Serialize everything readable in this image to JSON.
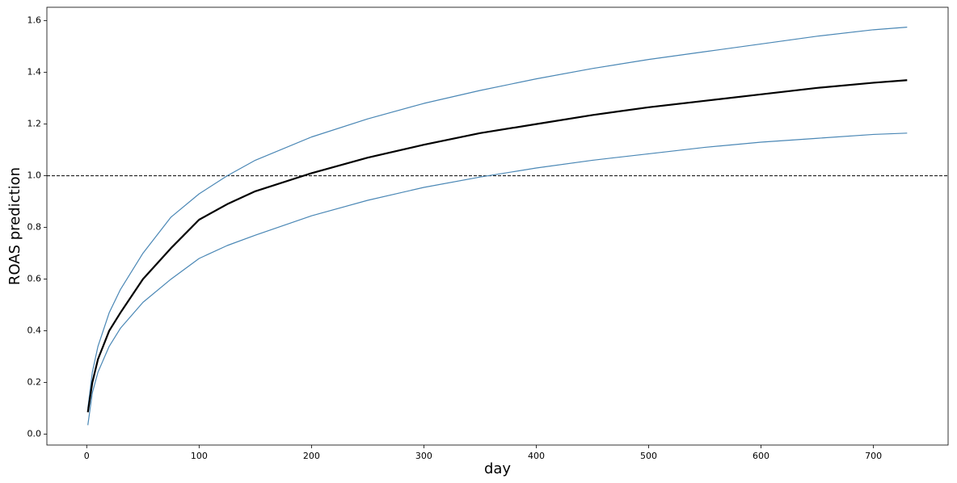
{
  "chart_data": {
    "type": "line",
    "xlabel": "day",
    "ylabel": "ROAS prediction",
    "x": [
      1,
      5,
      10,
      20,
      30,
      50,
      75,
      100,
      125,
      150,
      200,
      250,
      300,
      350,
      400,
      450,
      500,
      550,
      600,
      650,
      700,
      730
    ],
    "series": [
      {
        "color": "#4a87b5",
        "width": 1.2,
        "values": [
          0.1,
          0.24,
          0.34,
          0.47,
          0.56,
          0.7,
          0.84,
          0.93,
          1.0,
          1.06,
          1.15,
          1.22,
          1.28,
          1.33,
          1.375,
          1.415,
          1.45,
          1.48,
          1.51,
          1.54,
          1.565,
          1.575
        ]
      },
      {
        "color": "#4a87b5",
        "width": 1.2,
        "values": [
          0.035,
          0.16,
          0.24,
          0.34,
          0.41,
          0.51,
          0.6,
          0.68,
          0.73,
          0.77,
          0.845,
          0.905,
          0.955,
          0.995,
          1.03,
          1.06,
          1.085,
          1.11,
          1.13,
          1.145,
          1.16,
          1.165
        ]
      },
      {
        "color": "#000000",
        "width": 2.2,
        "values": [
          0.085,
          0.2,
          0.29,
          0.4,
          0.47,
          0.6,
          0.72,
          0.83,
          0.89,
          0.94,
          1.01,
          1.07,
          1.12,
          1.165,
          1.2,
          1.235,
          1.265,
          1.29,
          1.315,
          1.34,
          1.36,
          1.37
        ]
      }
    ],
    "hline": 1.0,
    "hline_color": "#000000",
    "xlim": [
      -35.45,
      766.45
    ],
    "ylim": [
      -0.042,
      1.652
    ],
    "xticks": [
      0,
      100,
      200,
      300,
      400,
      500,
      600,
      700
    ],
    "yticks": [
      {
        "value": 0.0,
        "label": "0.0"
      },
      0.2,
      0.4,
      0.6,
      0.8,
      {
        "value": 1.0,
        "label": "1.0"
      },
      1.2,
      1.4,
      1.6
    ],
    "grid": false
  }
}
